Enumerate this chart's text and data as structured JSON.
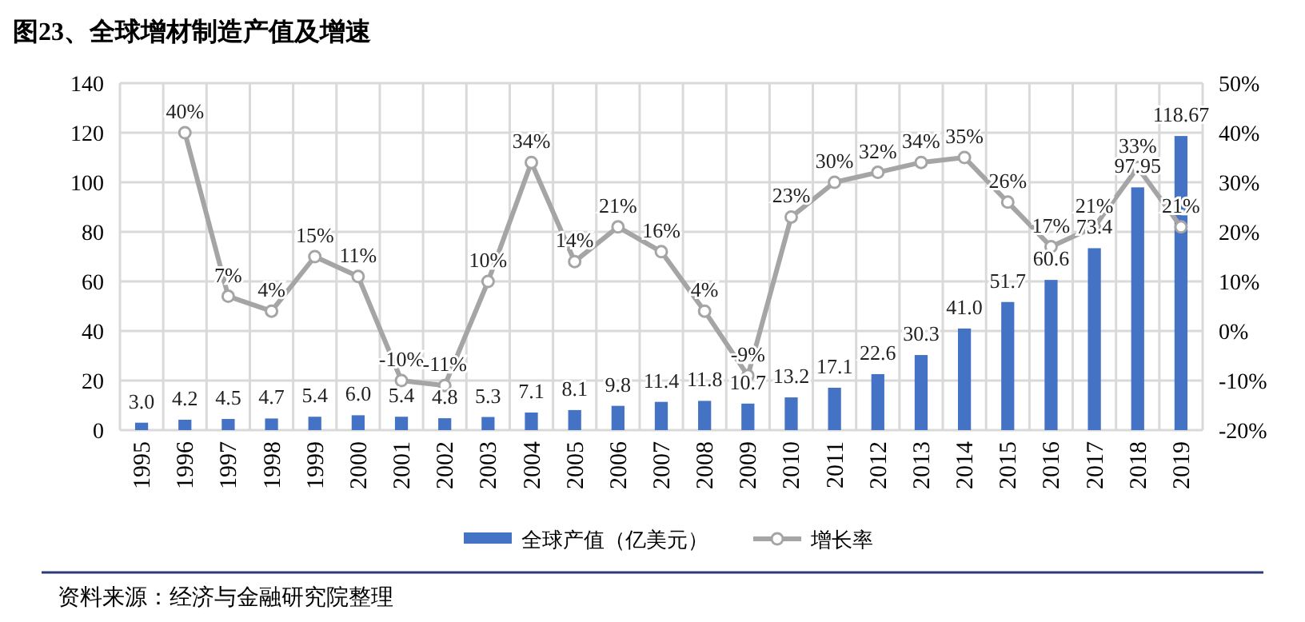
{
  "chart_data": {
    "type": "bar",
    "title": "图23、全球增材制造产值及增速",
    "categories": [
      "1995",
      "1996",
      "1997",
      "1998",
      "1999",
      "2000",
      "2001",
      "2002",
      "2003",
      "2004",
      "2005",
      "2006",
      "2007",
      "2008",
      "2009",
      "2010",
      "2011",
      "2012",
      "2013",
      "2014",
      "2015",
      "2016",
      "2017",
      "2018",
      "2019"
    ],
    "series": [
      {
        "name": "全球产值（亿美元）",
        "color": "#4472c4",
        "values": [
          3.0,
          4.2,
          4.5,
          4.7,
          5.4,
          6.0,
          5.4,
          4.8,
          5.3,
          7.1,
          8.1,
          9.8,
          11.4,
          11.8,
          10.7,
          13.2,
          17.1,
          22.6,
          30.3,
          41.0,
          51.7,
          60.6,
          73.4,
          97.95,
          118.67
        ],
        "value_labels": [
          "3.0",
          "4.2",
          "4.5",
          "4.7",
          "5.4",
          "6.0",
          "5.4",
          "4.8",
          "5.3",
          "7.1",
          "8.1",
          "9.8",
          "11.4",
          "11.8",
          "10.7",
          "13.2",
          "17.1",
          "22.6",
          "30.3",
          "41.0",
          "51.7",
          "60.6",
          "73.4",
          "97.95",
          "118.67"
        ]
      },
      {
        "name": "增长率",
        "type": "line",
        "axis": "y2",
        "color": "#a5a5a5",
        "marker": "circle",
        "values": [
          null,
          40,
          7,
          4,
          15,
          11,
          -10,
          -11,
          10,
          34,
          14,
          21,
          16,
          4,
          -9,
          23,
          30,
          32,
          34,
          35,
          26,
          17,
          21,
          33,
          21
        ],
        "value_labels": [
          null,
          "40%",
          "7%",
          "4%",
          "15%",
          "11%",
          "-10%",
          "-11%",
          "10%",
          "34%",
          "14%",
          "21%",
          "16%",
          "4%",
          "-9%",
          "23%",
          "30%",
          "32%",
          "34%",
          "35%",
          "26%",
          "17%",
          "21%",
          "33%",
          "21%"
        ]
      }
    ],
    "ylim": [
      0,
      140
    ],
    "yticks": [
      0,
      20,
      40,
      60,
      80,
      100,
      120,
      140
    ],
    "y2lim": [
      -20,
      50
    ],
    "y2ticks": [
      {
        "value": -20,
        "label": "-20%"
      },
      {
        "value": -10,
        "label": "-10%"
      },
      {
        "value": 0,
        "label": "0%"
      },
      {
        "value": 10,
        "label": "10%"
      },
      {
        "value": 20,
        "label": "20%"
      },
      {
        "value": 30,
        "label": "30%"
      },
      {
        "value": 40,
        "label": "40%"
      },
      {
        "value": 50,
        "label": "50%"
      }
    ],
    "grid": true,
    "legend": "bottom",
    "annotations": [
      "资料来源：经济与金融研究院整理"
    ]
  }
}
